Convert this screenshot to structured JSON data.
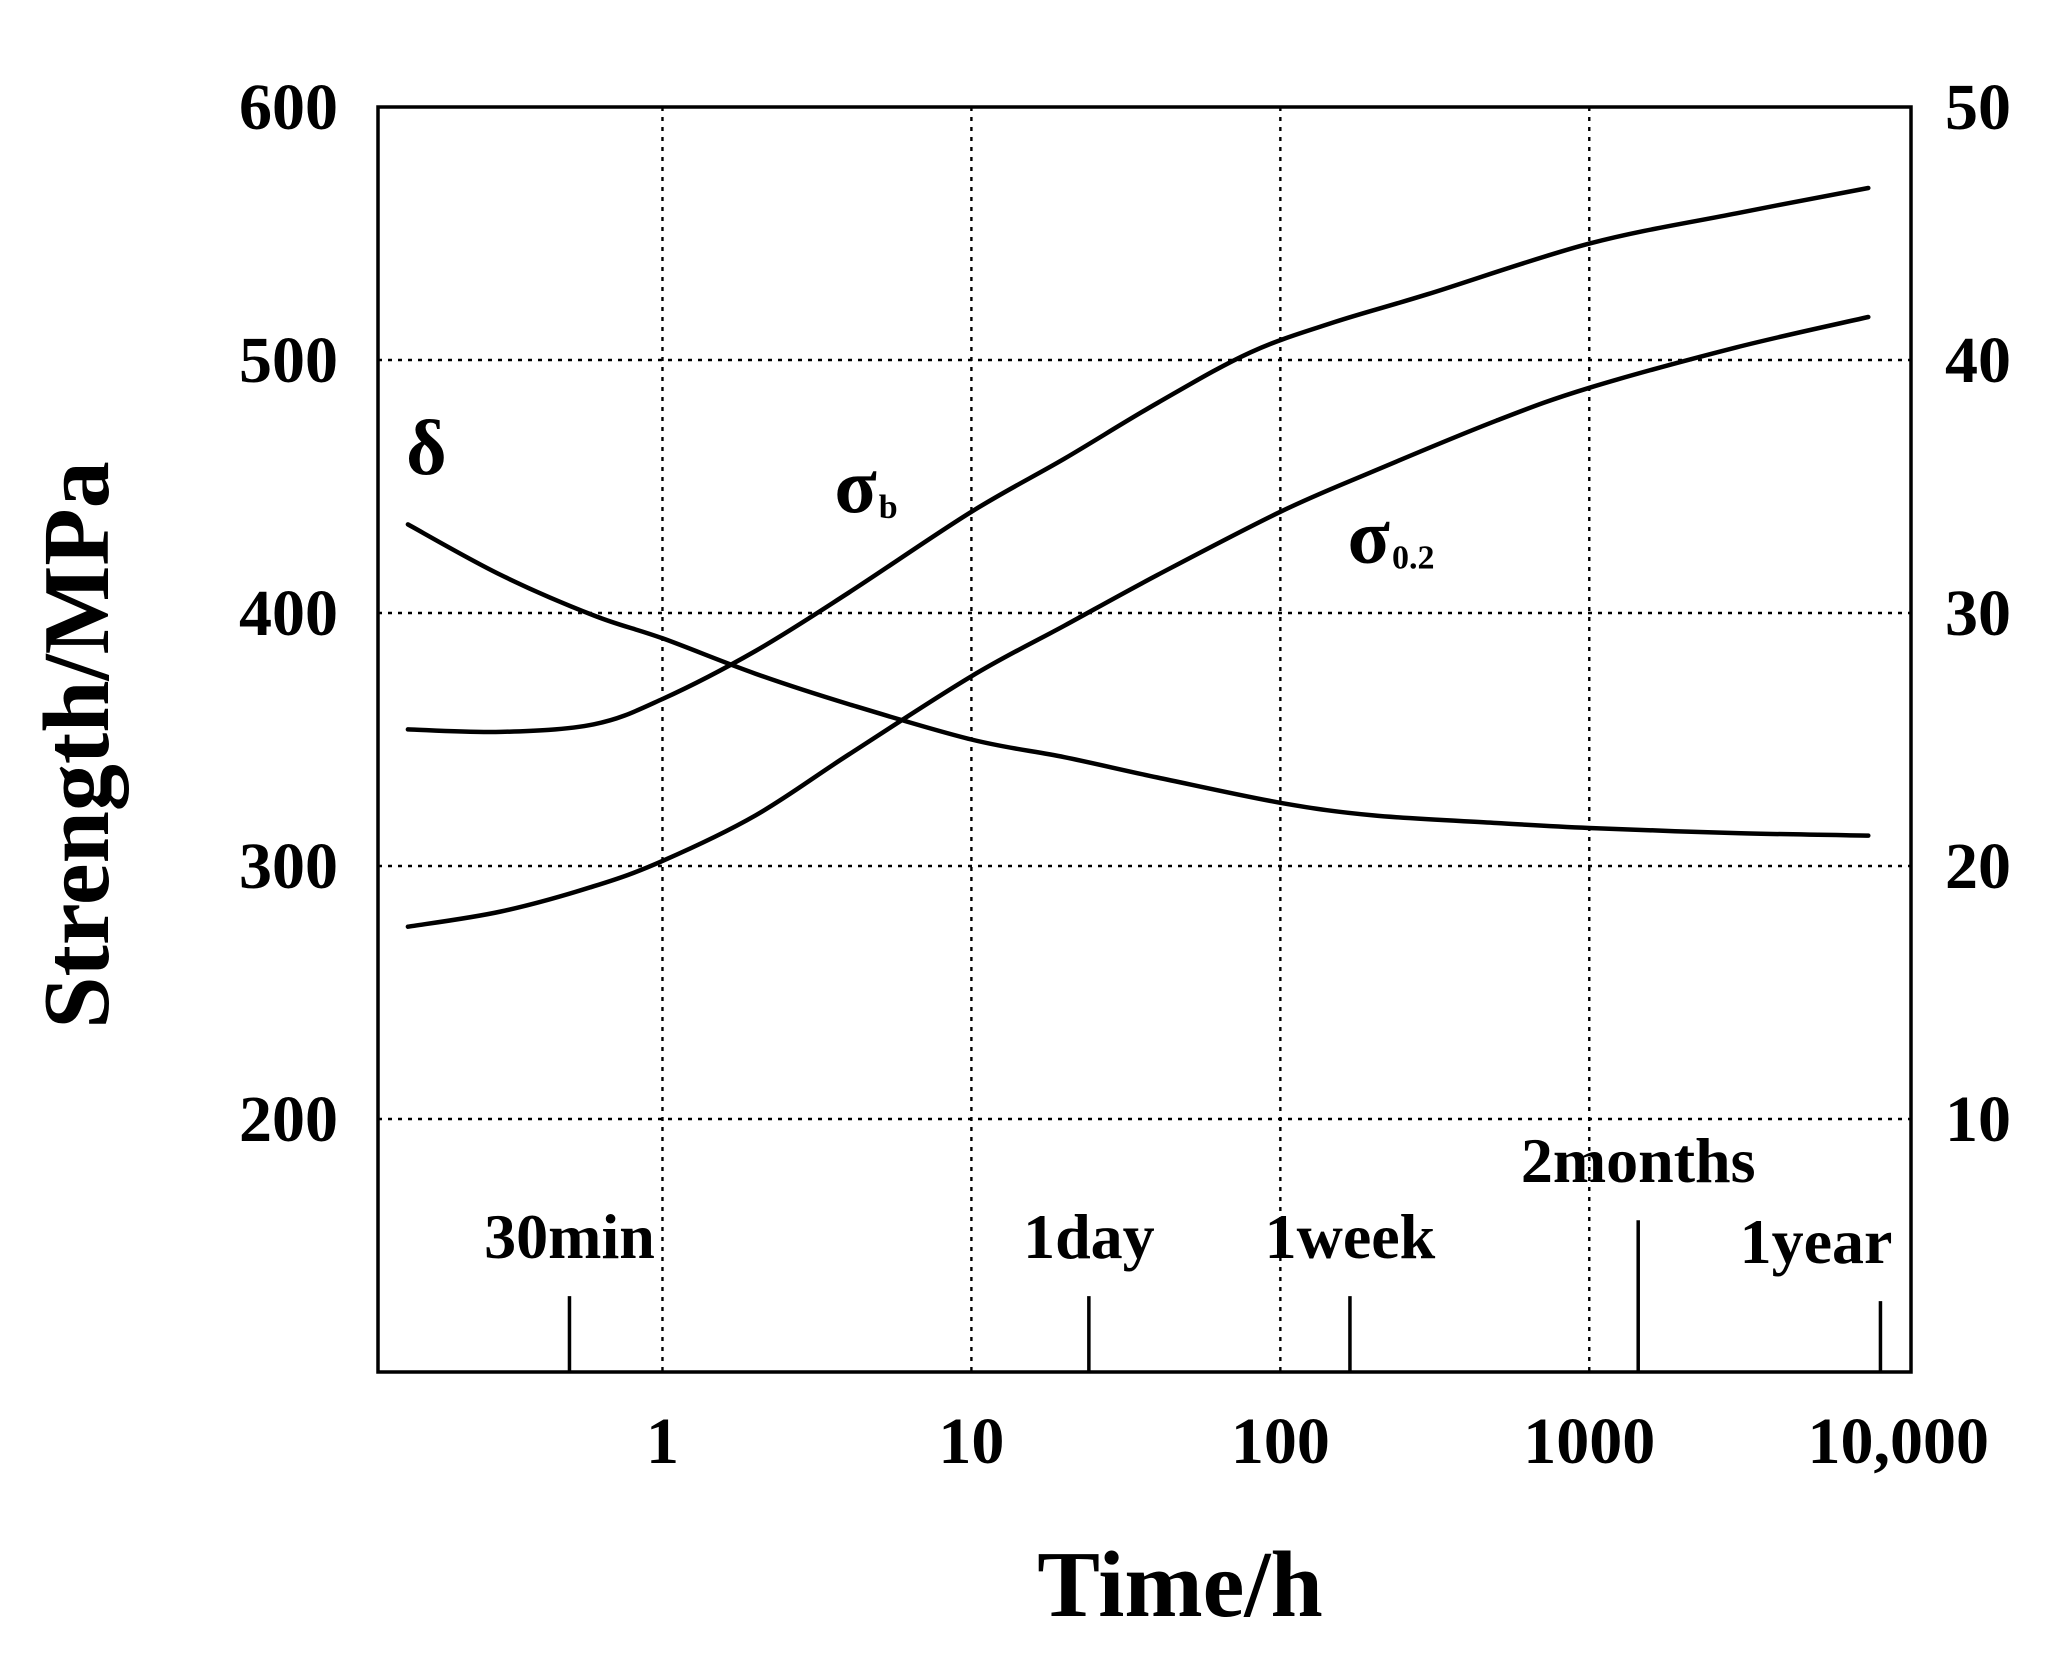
{
  "chart_data": {
    "type": "line",
    "xscale": "log",
    "xlabel": "Time/h",
    "ylabel": "Strength/MPa",
    "xlim": [
      0.12,
      11000
    ],
    "ylim_left": [
      100,
      600
    ],
    "ylim_right": [
      0,
      50
    ],
    "x_ticks": [
      {
        "value": 1,
        "label": "1"
      },
      {
        "value": 10,
        "label": "10"
      },
      {
        "value": 100,
        "label": "100"
      },
      {
        "value": 1000,
        "label": "1000"
      },
      {
        "value": 10000,
        "label": "10,000"
      }
    ],
    "y_left_ticks": [
      {
        "value": 200,
        "label": "200"
      },
      {
        "value": 300,
        "label": "300"
      },
      {
        "value": 400,
        "label": "400"
      },
      {
        "value": 500,
        "label": "500"
      },
      {
        "value": 600,
        "label": "600"
      }
    ],
    "y_right_ticks": [
      {
        "value": 10,
        "label": "10"
      },
      {
        "value": 20,
        "label": "20"
      },
      {
        "value": 30,
        "label": "30"
      },
      {
        "value": 40,
        "label": "40"
      },
      {
        "value": 50,
        "label": "50"
      }
    ],
    "grid": true,
    "time_markers": [
      {
        "time": 0.5,
        "label": "30min",
        "tick_top": 130
      },
      {
        "time": 24,
        "label": "1day",
        "tick_top": 130
      },
      {
        "time": 168,
        "label": "1week",
        "tick_top": 130
      },
      {
        "time": 1440,
        "label": "2months",
        "tick_top": 160
      },
      {
        "time": 8760,
        "label": "1year",
        "tick_top": 128
      }
    ],
    "series": [
      {
        "name": "σb",
        "label_main": "σ",
        "label_sub": "b",
        "axis": "left",
        "label_at": {
          "x": 3.6,
          "y": 440
        },
        "x": [
          0.15,
          0.3,
          0.6,
          1,
          2,
          4,
          10,
          20,
          40,
          80,
          150,
          300,
          1000,
          3000,
          8000
        ],
        "y": [
          354,
          353,
          356,
          366,
          385,
          408,
          440,
          461,
          483,
          503,
          515,
          526,
          546,
          558,
          568
        ]
      },
      {
        "name": "σ0.2",
        "label_main": "σ",
        "label_sub": "0.2",
        "axis": "left",
        "label_at": {
          "x": 165,
          "y": 420
        },
        "x": [
          0.15,
          0.3,
          0.6,
          1,
          2,
          4,
          10,
          20,
          40,
          100,
          200,
          500,
          1000,
          3000,
          8000
        ],
        "y": [
          276,
          282,
          292,
          302,
          320,
          344,
          375,
          395,
          415,
          440,
          456,
          476,
          489,
          505,
          517
        ]
      },
      {
        "name": "δ",
        "label_main": "δ",
        "label_sub": "",
        "axis": "right",
        "label_at": {
          "x": 0.148,
          "y": 35.5
        },
        "x": [
          0.15,
          0.3,
          0.6,
          1,
          2,
          4,
          10,
          20,
          40,
          100,
          200,
          500,
          1000,
          3000,
          8000
        ],
        "y": [
          33.5,
          31.5,
          29.9,
          29.0,
          27.6,
          26.4,
          25.0,
          24.3,
          23.5,
          22.5,
          22.0,
          21.7,
          21.5,
          21.3,
          21.2
        ]
      }
    ]
  }
}
